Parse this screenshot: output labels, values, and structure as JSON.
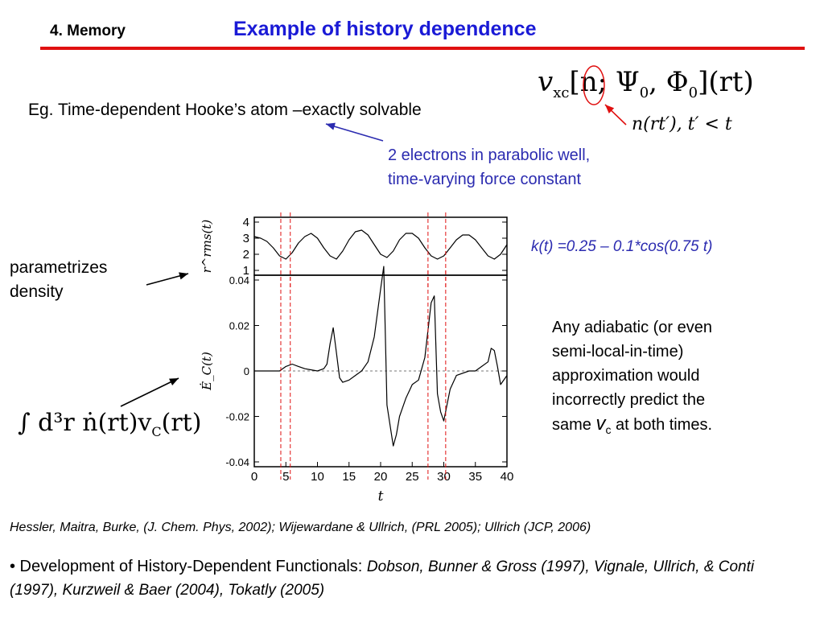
{
  "header": {
    "section": "4. Memory",
    "title": "Example of history dependence"
  },
  "intro": "Eg. Time-dependent Hooke’s atom –exactly solvable",
  "notes": {
    "electrons_line1": "2 electrons in parabolic well,",
    "electrons_line2": "time-varying force constant",
    "force_constant": "k(t) =0.25 – 0.1*cos(0.75 t)",
    "param_line1": "parametrizes",
    "param_line2": "density",
    "adiabatic_line1": "Any adiabatic (or even",
    "adiabatic_line2": "semi-local-in-time)",
    "adiabatic_line3": "approximation would",
    "adiabatic_line4": "incorrectly predict the",
    "adiabatic_prefix": "same",
    "adiabatic_v": "v",
    "adiabatic_sub": "c",
    "adiabatic_suffix": "at both times."
  },
  "math": {
    "vxc_v": "v",
    "vxc_sub": "xc",
    "vxc_args": "[n; Ψ",
    "vxc_sub0a": "0",
    "vxc_mid": ", Φ",
    "vxc_sub0b": "0",
    "vxc_tail": "](rt)",
    "nrt": "n(rt′), t′ < t",
    "integral": "∫ d³r ṅ(rt)v",
    "integral_sub": "C",
    "integral_tail": "(rt)"
  },
  "references": "Hessler, Maitra, Burke, (J. Chem. Phys, 2002); Wijewardane & Ullrich, (PRL 2005); Ullrich (JCP, 2006)",
  "bullet": {
    "lead": "• Development of History-Dependent Functionals:",
    "refs": "Dobson, Bunner & Gross (1997), Vignale, Ullrich, & Conti (1997), Kurzweil & Baer (2004), Tokatly (2005)"
  },
  "colors": {
    "title": "#1a1ad6",
    "rule": "#e01010",
    "note": "#2b2bb0",
    "marker": "#e01010"
  },
  "chart_data": [
    {
      "type": "line",
      "ylabel": "r^rms(t)",
      "xlim": [
        0,
        40
      ],
      "ylim": [
        1,
        4
      ],
      "yticks": [
        "1",
        "2",
        "3",
        "4"
      ],
      "marker_times": [
        4.2,
        5.7,
        27.5,
        30.3
      ],
      "series": [
        {
          "x": [
            0,
            1,
            2,
            3,
            4,
            5,
            6,
            7,
            8,
            9,
            10,
            11,
            12,
            13,
            14,
            15,
            16,
            17,
            18,
            19,
            20,
            21,
            22,
            23,
            24,
            25,
            26,
            27,
            28,
            29,
            30,
            31,
            32,
            33,
            34,
            35,
            36,
            37,
            38,
            39,
            40
          ],
          "y": [
            3.1,
            3.0,
            2.8,
            2.4,
            1.9,
            1.7,
            2.1,
            2.7,
            3.1,
            3.3,
            3.0,
            2.4,
            1.9,
            1.7,
            2.2,
            2.9,
            3.4,
            3.5,
            3.2,
            2.6,
            2.0,
            1.8,
            2.2,
            2.9,
            3.3,
            3.3,
            3.0,
            2.4,
            1.9,
            1.7,
            1.9,
            2.4,
            2.9,
            3.2,
            3.2,
            2.9,
            2.4,
            1.9,
            1.7,
            2.0,
            2.6
          ]
        }
      ]
    },
    {
      "type": "line",
      "ylabel": "Ė_C(t)",
      "xlabel": "t",
      "xlim": [
        0,
        40
      ],
      "ylim": [
        -0.04,
        0.04
      ],
      "xticks": [
        "0",
        "5",
        "10",
        "15",
        "20",
        "25",
        "30",
        "35",
        "40"
      ],
      "yticks": [
        "0.04",
        "0.02",
        "0",
        "-0.02",
        "-0.04"
      ],
      "marker_times": [
        4.2,
        5.7,
        27.5,
        30.3
      ],
      "series": [
        {
          "x": [
            0,
            2,
            4,
            5,
            6,
            7,
            8,
            10,
            11,
            11.5,
            12,
            12.5,
            13,
            13.5,
            14,
            15,
            16,
            17,
            18,
            19,
            20,
            20.5,
            21,
            22,
            22.5,
            23,
            24,
            25,
            26,
            27,
            28,
            28.5,
            29,
            29.5,
            30,
            31,
            32,
            34,
            35,
            36,
            37,
            37.5,
            38,
            38.5,
            39,
            40
          ],
          "y": [
            0,
            0,
            0,
            0.002,
            0.003,
            0.002,
            0.001,
            0,
            0.001,
            0.003,
            0.012,
            0.019,
            0.008,
            -0.003,
            -0.005,
            -0.004,
            -0.002,
            0,
            0.004,
            0.015,
            0.036,
            0.046,
            -0.015,
            -0.033,
            -0.028,
            -0.02,
            -0.012,
            -0.006,
            -0.004,
            0.006,
            0.03,
            0.033,
            -0.01,
            -0.018,
            -0.022,
            -0.008,
            -0.002,
            0,
            0,
            0.002,
            0.004,
            0.01,
            0.009,
            0.002,
            -0.006,
            -0.002
          ]
        }
      ]
    }
  ]
}
